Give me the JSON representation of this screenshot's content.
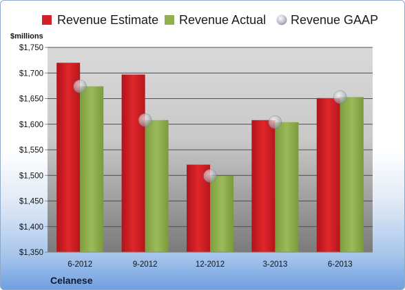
{
  "chart_data": {
    "type": "bar",
    "unit_label": "$millions",
    "company": "Celanese",
    "categories": [
      "6-2012",
      "9-2012",
      "12-2012",
      "3-2013",
      "6-2013"
    ],
    "series": [
      {
        "name": "Revenue Estimate",
        "type": "bar",
        "color": "#d42126",
        "values": [
          1720,
          1697,
          1521,
          1608,
          1651
        ]
      },
      {
        "name": "Revenue Actual",
        "type": "bar",
        "color": "#8fb04c",
        "values": [
          1674,
          1608,
          1499,
          1604,
          1653
        ]
      },
      {
        "name": "Revenue GAAP",
        "type": "marker",
        "color": "#c8ccd6",
        "values": [
          1674,
          1608,
          1499,
          1604,
          1653
        ]
      }
    ],
    "ylim": [
      1350,
      1750
    ],
    "yticks": [
      "$1,350",
      "$1,400",
      "$1,450",
      "$1,500",
      "$1,550",
      "$1,600",
      "$1,650",
      "$1,700",
      "$1,750"
    ],
    "ytick_values": [
      1350,
      1400,
      1450,
      1500,
      1550,
      1600,
      1650,
      1700,
      1750
    ],
    "grid": true,
    "legend_position": "top"
  }
}
